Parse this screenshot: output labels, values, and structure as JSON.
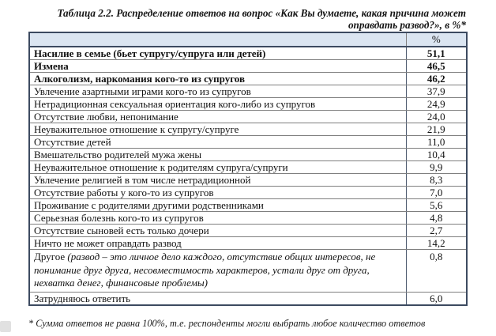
{
  "title": "Таблица 2.2. Распределение ответов на вопрос «Как Вы думаете, какая причина может оправдать развод?», в %*",
  "footnote": "* Сумма ответов не равна 100%, т.е. респонденты могли выбрать любое количество ответов",
  "colors": {
    "header_bg": "#dbe5f1",
    "outer_border": "#3c4a60",
    "grid_line": "#7f7f7f"
  },
  "table": {
    "header_percent": "%",
    "rows": [
      {
        "label": "Насилие в семье (бьет супругу/супруга или детей)",
        "value": "51,1",
        "bold": true
      },
      {
        "label": "Измена",
        "value": "46,5",
        "bold": true
      },
      {
        "label": "Алкоголизм, наркомания кого-то из супругов",
        "value": "46,2",
        "bold": true
      },
      {
        "label": "Увлечение азартными играми кого-то из супругов",
        "value": "37,9"
      },
      {
        "label": "Нетрадиционная сексуальная ориентация кого-либо из супругов",
        "value": "24,9"
      },
      {
        "label": "Отсутствие любви, непонимание",
        "value": "24,0"
      },
      {
        "label": "Неуважительное отношение к супругу/супруге",
        "value": "21,9"
      },
      {
        "label": "Отсутствие детей",
        "value": "11,0"
      },
      {
        "label": "Вмешательство родителей мужа жены",
        "value": "10,4"
      },
      {
        "label": "Неуважительное отношение к родителям супруга/супруги",
        "value": "9,9"
      },
      {
        "label": "Увлечение религией в том числе нетрадиционной",
        "value": "8,3"
      },
      {
        "label": "Отсутствие работы у кого-то из супругов",
        "value": "7,0"
      },
      {
        "label": "Проживание с родителями другими родственниками",
        "value": "5,6"
      },
      {
        "label": "Серьезная болезнь кого-то из супругов",
        "value": "4,8"
      },
      {
        "label": "Отсутствие сыновей есть только дочери",
        "value": "2,7"
      },
      {
        "label": "Ничто не может оправдать развод",
        "value": "14,2"
      },
      {
        "label": "Другое",
        "note": "(развод – это личное дело каждого, отсутствие общих интересов, не понимание друг друга, несовместимость характеров, устали друг от друга, нехватка денег, финансовые проблемы)",
        "value": "0,8",
        "multiline": true
      },
      {
        "label": "Затрудняюсь ответить",
        "value": "6,0"
      }
    ]
  }
}
